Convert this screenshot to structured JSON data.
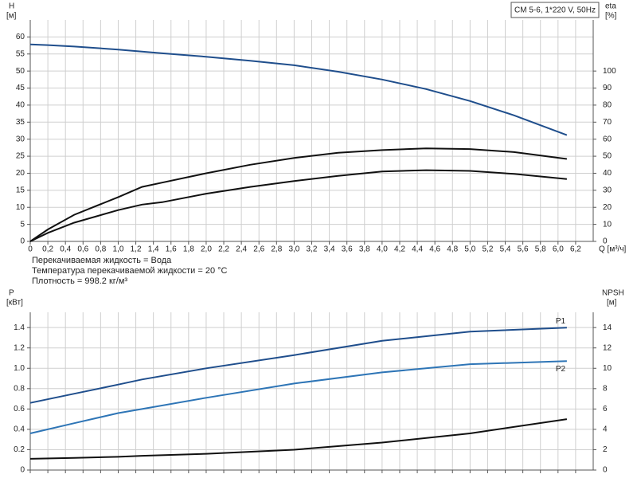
{
  "chart_data": [
    {
      "type": "line",
      "title": "CM 5-6, 1*220 V, 50Hz",
      "ylabel": "H",
      "yunit": "[м]",
      "y2label": "eta",
      "y2unit": "[%]",
      "xlabel": "Q [м³/ч]",
      "annotations": [
        "Перекачиваемая жидкость = Вода",
        "Температура перекачиваемой жидкости = 20 °C",
        "Плотность = 998.2 кг/м³"
      ],
      "x": [
        0,
        0.2,
        0.5,
        1.0,
        1.27,
        1.5,
        2,
        2.5,
        3,
        3.5,
        4,
        4.5,
        5,
        5.5,
        6.1
      ],
      "series": [
        {
          "color": "#1f4e8c",
          "values": [
            57.8,
            57.6,
            57.2,
            56.3,
            55.7,
            55.2,
            54.2,
            53.0,
            51.7,
            49.8,
            47.5,
            44.7,
            41.2,
            37.0,
            31.2
          ]
        },
        {
          "color": "#111111",
          "axis": "y2",
          "values": [
            0,
            7,
            15.6,
            26,
            32,
            34.5,
            40,
            45,
            49,
            52,
            53.6,
            54.6,
            54.2,
            52.4,
            48.4
          ]
        },
        {
          "color": "#111111",
          "axis": "y2",
          "values": [
            0,
            5,
            11,
            18.4,
            21.6,
            23,
            28,
            32,
            35.4,
            38.5,
            41,
            41.8,
            41.4,
            39.6,
            36.6
          ]
        }
      ],
      "xlim": [
        0,
        6.4
      ],
      "xticks": [
        0,
        {
          "value": 0.2,
          "label": "0,2"
        },
        {
          "value": 0.4,
          "label": "0,4"
        },
        {
          "value": 0.6,
          "label": "0,6"
        },
        {
          "value": 0.8,
          "label": "0,8"
        },
        {
          "value": 1.0,
          "label": "1,0"
        },
        {
          "value": 1.2,
          "label": "1,2"
        },
        {
          "value": 1.4,
          "label": "1,4"
        },
        {
          "value": 1.6,
          "label": "1,6"
        },
        {
          "value": 1.8,
          "label": "1,8"
        },
        {
          "value": 2.0,
          "label": "2,0"
        },
        {
          "value": 2.2,
          "label": "2,2"
        },
        {
          "value": 2.4,
          "label": "2,4"
        },
        {
          "value": 2.6,
          "label": "2,6"
        },
        {
          "value": 2.8,
          "label": "2,8"
        },
        {
          "value": 3.0,
          "label": "3,0"
        },
        {
          "value": 3.2,
          "label": "3,2"
        },
        {
          "value": 3.4,
          "label": "3,4"
        },
        {
          "value": 3.6,
          "label": "3,6"
        },
        {
          "value": 3.8,
          "label": "3,8"
        },
        {
          "value": 4.0,
          "label": "4,0"
        },
        {
          "value": 4.2,
          "label": "4,2"
        },
        {
          "value": 4.4,
          "label": "4,4"
        },
        {
          "value": 4.6,
          "label": "4,6"
        },
        {
          "value": 4.8,
          "label": "4,8"
        },
        {
          "value": 5.0,
          "label": "5,0"
        },
        {
          "value": 5.2,
          "label": "5,2"
        },
        {
          "value": 5.4,
          "label": "5,4"
        },
        {
          "value": 5.6,
          "label": "5,6"
        },
        {
          "value": 5.8,
          "label": "5,8"
        },
        {
          "value": 6.0,
          "label": "6,0"
        },
        {
          "value": 6.2,
          "label": "6,2"
        }
      ],
      "ylim": [
        0,
        65
      ],
      "yticks": [
        0,
        5,
        10,
        15,
        20,
        25,
        30,
        35,
        40,
        45,
        50,
        55,
        60
      ],
      "y2lim": [
        0,
        130
      ],
      "y2ticks": [
        0,
        10,
        20,
        30,
        40,
        50,
        60,
        70,
        80,
        90,
        100
      ],
      "grid": true
    },
    {
      "type": "line",
      "ylabel": "P",
      "yunit": "[кВт]",
      "y2label": "NPSH",
      "y2unit": "[м]",
      "x": [
        0,
        0.5,
        1.0,
        1.27,
        2,
        3,
        4,
        5,
        6.1
      ],
      "series": [
        {
          "name": "P1",
          "color": "#1f4e8c",
          "values": [
            0.66,
            0.75,
            0.84,
            0.89,
            1.0,
            1.13,
            1.27,
            1.36,
            1.4
          ]
        },
        {
          "name": "P2",
          "color": "#2e75b6",
          "values": [
            0.36,
            0.46,
            0.56,
            0.6,
            0.71,
            0.85,
            0.96,
            1.04,
            1.07
          ]
        },
        {
          "color": "#111111",
          "axis": "y2",
          "values": [
            1.1,
            1.2,
            1.3,
            1.4,
            1.6,
            2.0,
            2.7,
            3.6,
            5.0
          ]
        }
      ],
      "xlim": [
        0,
        6.4
      ],
      "ylim": [
        0,
        1.55
      ],
      "yticks": [
        0,
        0.2,
        0.4,
        0.6,
        0.8,
        {
          "value": 1.0,
          "label": "1.0"
        },
        1.2,
        1.4
      ],
      "y2lim": [
        0,
        15.5
      ],
      "y2ticks": [
        0,
        2,
        4,
        6,
        8,
        10,
        12,
        14
      ],
      "grid": true
    }
  ]
}
